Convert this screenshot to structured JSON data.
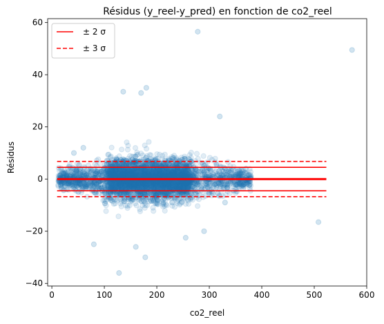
{
  "chart_data": {
    "type": "scatter",
    "title": "Résidus (y_reel-y_pred) en fonction de co2_reel",
    "xlabel": "co2_reel",
    "ylabel": "Résidus",
    "xlim": [
      -8,
      600
    ],
    "ylim": [
      -41,
      61.5
    ],
    "x_ticks": [
      0,
      100,
      200,
      300,
      400,
      500,
      600
    ],
    "y_ticks": [
      -40,
      -20,
      0,
      20,
      40,
      60
    ],
    "grid": false,
    "legend_position": "top-left",
    "point_color": "#1f77b4",
    "line_color": "#ff0000",
    "sigma": 2.25,
    "reference_lines": {
      "zero": {
        "y": 0,
        "x_range": [
          10,
          523
        ]
      },
      "two_sigma": {
        "name": "± 2 σ",
        "y": [
          4.5,
          -4.5
        ],
        "style": "solid",
        "x_range": [
          10,
          523
        ]
      },
      "three_sigma": {
        "name": "± 3 σ",
        "y": [
          6.75,
          -6.75
        ],
        "style": "dashed",
        "x_range": [
          10,
          523
        ]
      }
    },
    "cluster": {
      "x_range": [
        12,
        380
      ],
      "dense_x_range": [
        100,
        270
      ],
      "residual_spread_dense": 16,
      "residual_spread_edge": 6
    },
    "outliers": [
      {
        "x": 572,
        "y": 49.5
      },
      {
        "x": 278,
        "y": 56.5
      },
      {
        "x": 180,
        "y": 35
      },
      {
        "x": 170,
        "y": 33
      },
      {
        "x": 136,
        "y": 33.5
      },
      {
        "x": 320,
        "y": 24
      },
      {
        "x": 508,
        "y": -16.5
      },
      {
        "x": 128,
        "y": -36
      },
      {
        "x": 178,
        "y": -30
      },
      {
        "x": 160,
        "y": -26
      },
      {
        "x": 80,
        "y": -25
      },
      {
        "x": 255,
        "y": -22.5
      },
      {
        "x": 290,
        "y": -20
      },
      {
        "x": 330,
        "y": -9
      },
      {
        "x": 370,
        "y": 4
      },
      {
        "x": 60,
        "y": 12
      },
      {
        "x": 42,
        "y": 10
      }
    ]
  }
}
